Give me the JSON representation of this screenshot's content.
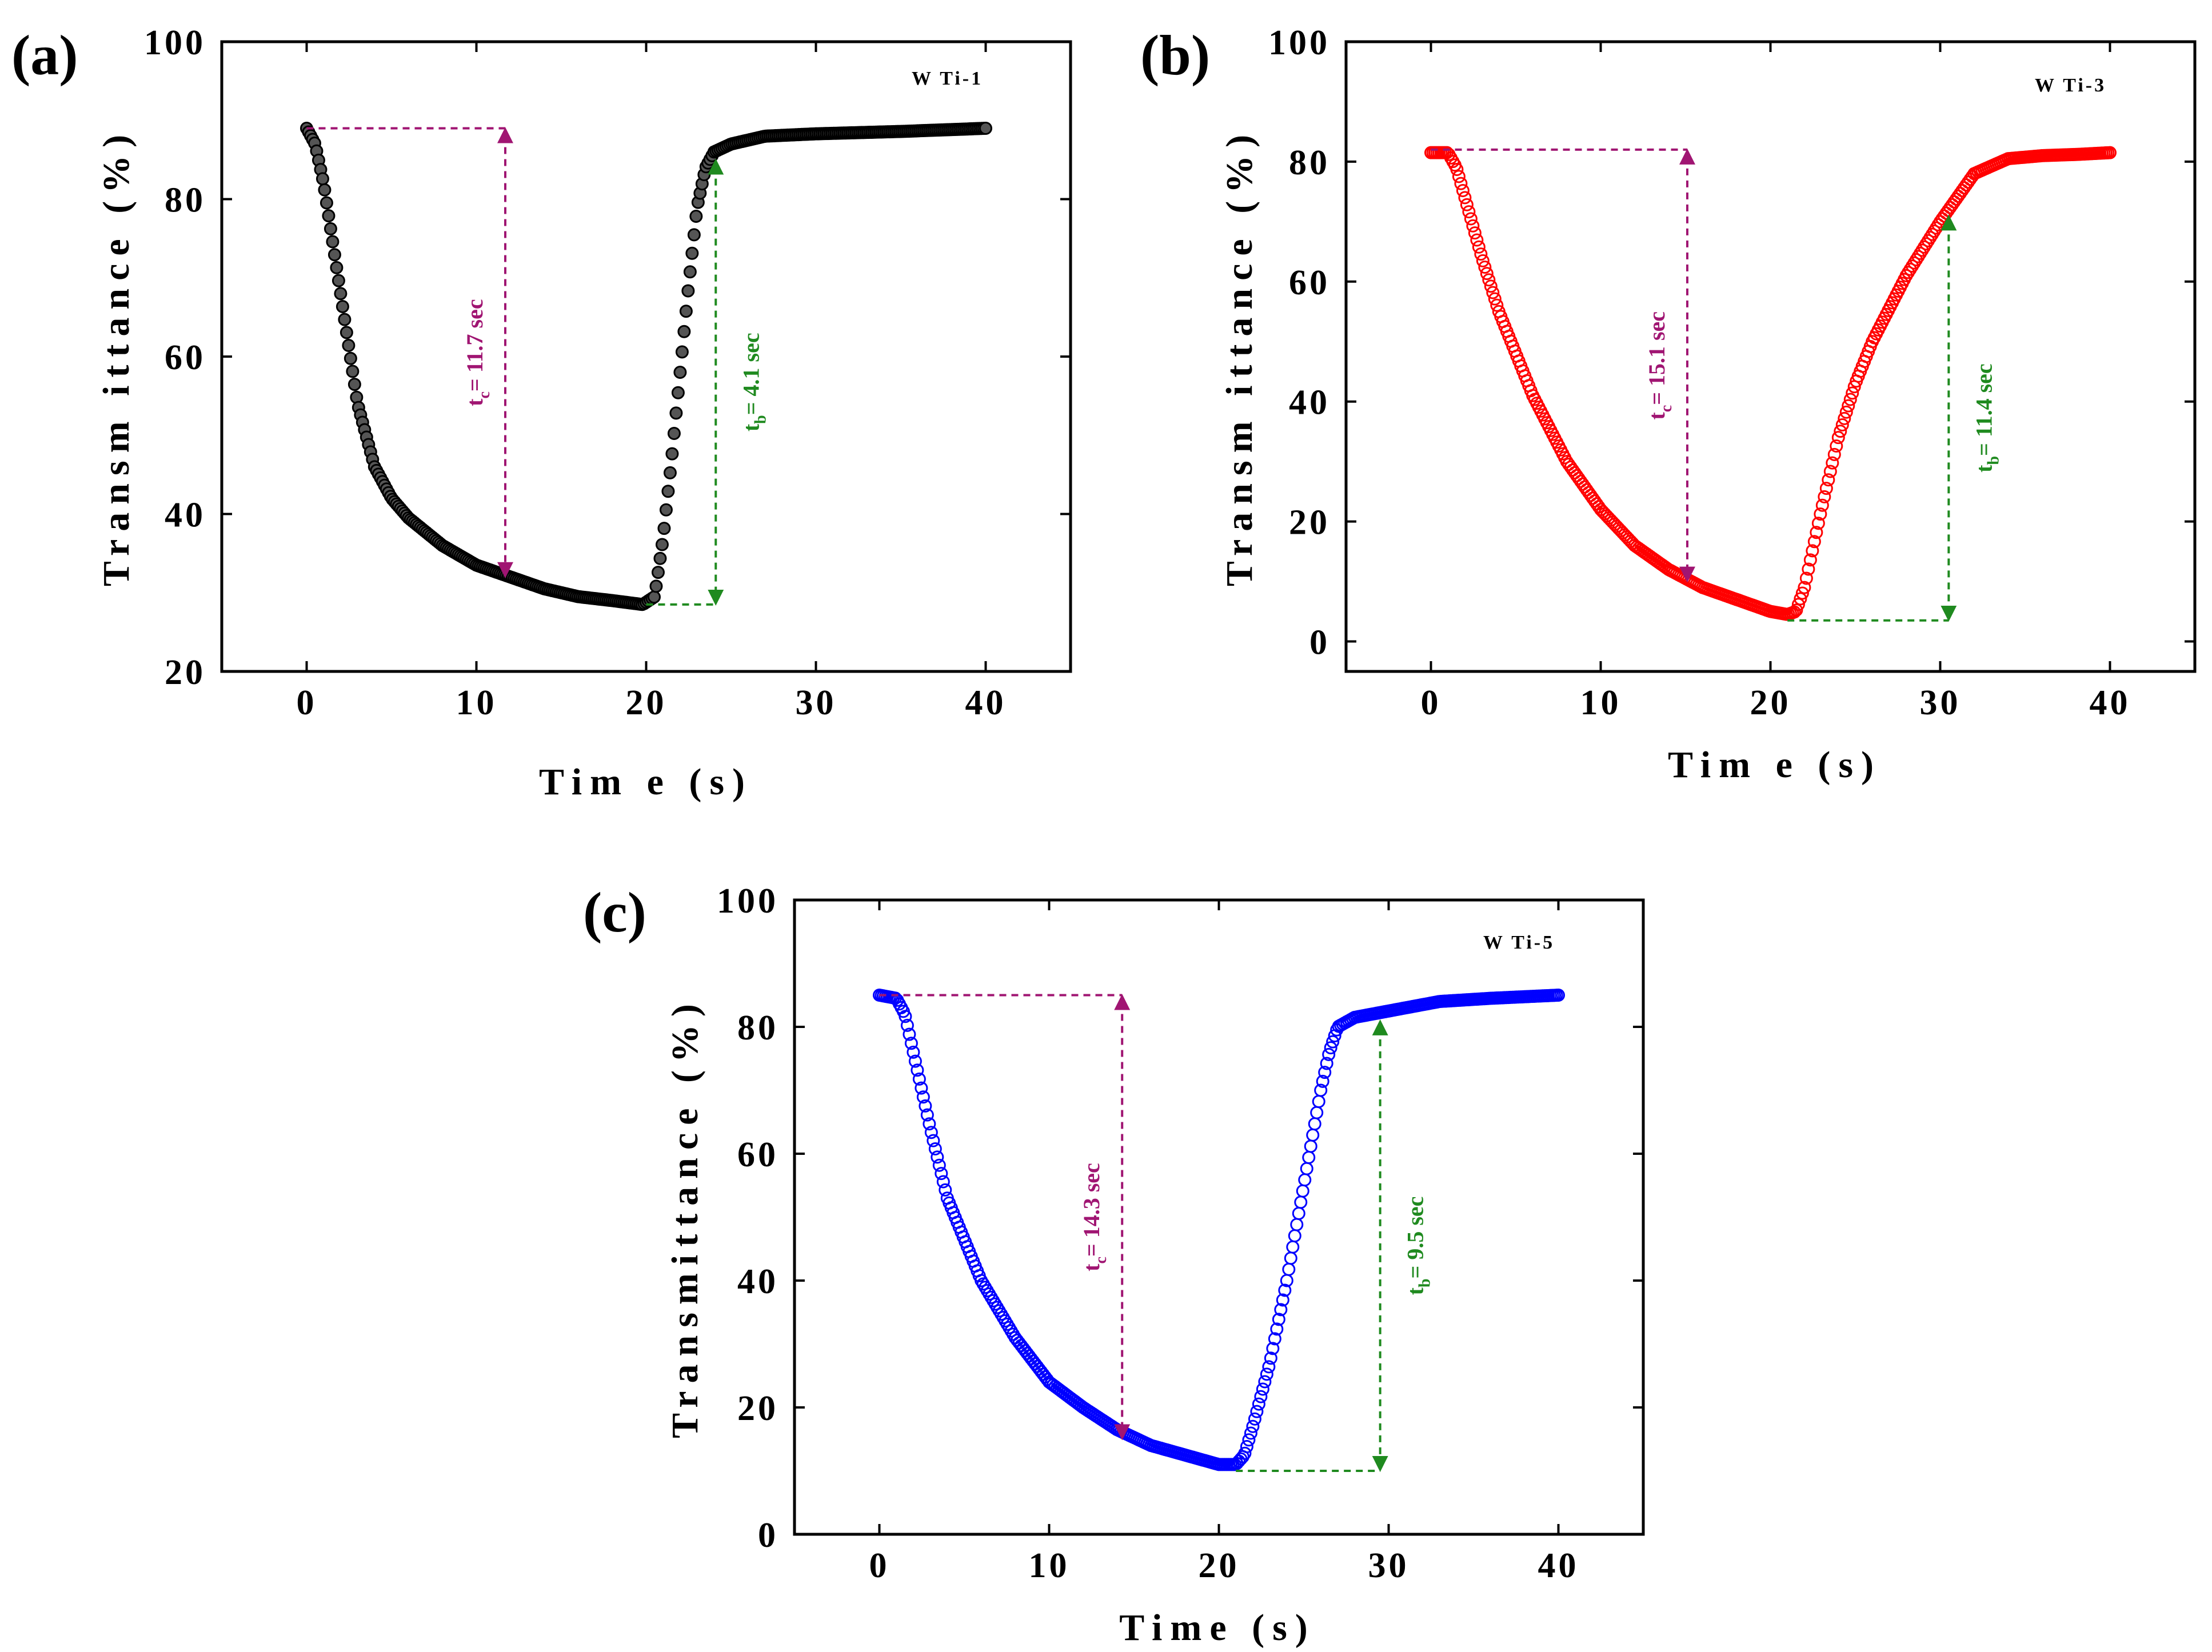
{
  "chart_data": [
    {
      "type": "scatter",
      "panel_label": "(a)",
      "sample_label": "W Ti-1",
      "xlabel": "Tim e  (s)",
      "ylabel": "Transm ittance  (%)",
      "xlim": [
        -5,
        45
      ],
      "ylim": [
        20,
        100
      ],
      "xticks": [
        0,
        10,
        20,
        30,
        40
      ],
      "yticks": [
        20,
        40,
        60,
        80,
        100
      ],
      "marker_color": "#000000",
      "marker_style": "filled",
      "series": [
        {
          "name": "W Ti-1",
          "x": [
            0,
            0.5,
            1,
            2,
            3,
            4,
            5,
            6,
            8,
            10,
            12,
            14,
            16,
            18,
            19.8,
            20.5,
            21,
            21.5,
            22,
            22.5,
            23,
            23.5,
            24,
            25,
            27,
            30,
            35,
            40
          ],
          "y": [
            89,
            87,
            82,
            68,
            54,
            46,
            42,
            39.5,
            36,
            33.5,
            32,
            30.5,
            29.5,
            29,
            28.5,
            29.5,
            37,
            47,
            58,
            69,
            79,
            84,
            86,
            87,
            88,
            88.3,
            88.6,
            89
          ]
        }
      ],
      "annotations": {
        "coloring": {
          "label_main": "t",
          "label_sub": "c",
          "label_rest": "= 11.7 sec",
          "x": 11.7,
          "y_top": 89,
          "y_bottom": 32,
          "color": "#a01572"
        },
        "bleaching": {
          "label_main": "t",
          "label_sub": "b",
          "label_rest": "= 4.1 sec",
          "x": 24.1,
          "x_start": 20,
          "y_top": 85,
          "y_bottom": 28.5,
          "color": "#1f8a1f"
        }
      }
    },
    {
      "type": "scatter",
      "panel_label": "(b)",
      "sample_label": "W Ti-3",
      "xlabel": "Tim e  (s)",
      "ylabel": "Transm ittance  (%)",
      "xlim": [
        -5,
        45
      ],
      "ylim": [
        -5,
        100
      ],
      "xticks": [
        0,
        10,
        20,
        30,
        40
      ],
      "yticks": [
        0,
        20,
        40,
        60,
        80,
        100
      ],
      "marker_color": "#ff0000",
      "marker_style": "open",
      "series": [
        {
          "name": "W Ti-3",
          "x": [
            0,
            1,
            1.5,
            2,
            3,
            4,
            6,
            8,
            10,
            12,
            14,
            16,
            18,
            20,
            21,
            21.5,
            22,
            23,
            24,
            25,
            26,
            28,
            30,
            32,
            34,
            36,
            38,
            40
          ],
          "y": [
            81.5,
            81.5,
            79,
            74,
            64,
            55,
            41,
            30,
            22,
            16,
            12,
            9,
            7,
            5,
            4.5,
            5,
            9,
            22,
            34,
            43,
            50,
            61,
            70,
            78,
            80.5,
            81,
            81.2,
            81.5
          ]
        }
      ],
      "annotations": {
        "coloring": {
          "label_main": "t",
          "label_sub": "c",
          "label_rest": "= 15.1 sec",
          "x": 15.1,
          "y_top": 82,
          "y_bottom": 10,
          "color": "#a01572"
        },
        "bleaching": {
          "label_main": "t",
          "label_sub": "b",
          "label_rest": "= 11.4 sec",
          "x": 30.5,
          "x_start": 21,
          "y_top": 71,
          "y_bottom": 3.5,
          "color": "#1f8a1f"
        }
      }
    },
    {
      "type": "scatter",
      "panel_label": "(c)",
      "sample_label": "W Ti-5",
      "xlabel": "Time (s)",
      "ylabel": "Transmittance (%)",
      "xlim": [
        -5,
        45
      ],
      "ylim": [
        0,
        100
      ],
      "xticks": [
        0,
        10,
        20,
        30,
        40
      ],
      "yticks": [
        0,
        20,
        40,
        60,
        80,
        100
      ],
      "marker_color": "#0000ff",
      "marker_style": "open",
      "series": [
        {
          "name": "W Ti-5",
          "x": [
            0,
            1,
            1.5,
            2,
            3,
            4,
            6,
            8,
            10,
            12,
            14,
            16,
            18,
            20,
            21,
            21.5,
            22,
            23,
            24,
            25,
            26,
            26.5,
            27,
            28,
            30,
            33,
            36,
            40
          ],
          "y": [
            85,
            84.5,
            82,
            76,
            64,
            53,
            40,
            31,
            24,
            20,
            16.5,
            14,
            12.5,
            11,
            11,
            12.5,
            17,
            27,
            40,
            55,
            70,
            76,
            80,
            81.5,
            82.5,
            84,
            84.5,
            85
          ]
        }
      ],
      "annotations": {
        "coloring": {
          "label_main": "t",
          "label_sub": "c",
          "label_rest": "= 14.3 sec",
          "x": 14.3,
          "y_top": 85,
          "y_bottom": 15,
          "color": "#a01572"
        },
        "bleaching": {
          "label_main": "t",
          "label_sub": "b",
          "label_rest": "= 9.5 sec",
          "x": 29.5,
          "x_start": 21,
          "y_top": 81,
          "y_bottom": 10,
          "color": "#1f8a1f"
        }
      }
    }
  ]
}
